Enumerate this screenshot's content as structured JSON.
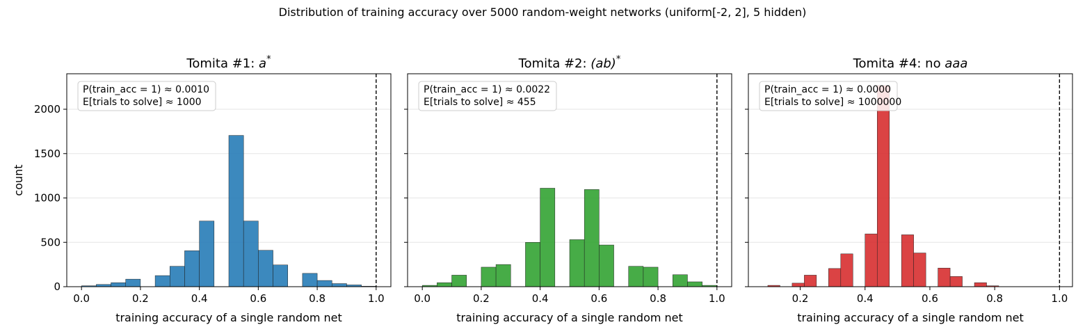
{
  "figure": {
    "suptitle": "Distribution of training accuracy over 5000 random-weight networks (uniform[-2, 2], 5 hidden)"
  },
  "chart_data": [
    {
      "type": "bar",
      "title_prefix": "Tomita #1: ",
      "title_math": "a",
      "title_sup": "*",
      "xlabel": "training accuracy of a single random net",
      "ylabel": "count",
      "xlim": [
        -0.05,
        1.05
      ],
      "ylim": [
        0,
        2400
      ],
      "xticks": [
        "0.0",
        "0.2",
        "0.4",
        "0.6",
        "0.8",
        "1.0"
      ],
      "xtick_values": [
        0.0,
        0.2,
        0.4,
        0.6,
        0.8,
        1.0
      ],
      "yticks": [
        "0",
        "500",
        "1000",
        "1500",
        "2000"
      ],
      "ytick_values": [
        0,
        500,
        1000,
        1500,
        2000
      ],
      "grid": "y",
      "color": "#1f77b4",
      "bin_edges": [
        0.0,
        0.05,
        0.1,
        0.15,
        0.2,
        0.25,
        0.3,
        0.35,
        0.4,
        0.45,
        0.5,
        0.55,
        0.6,
        0.65,
        0.7,
        0.75,
        0.8,
        0.85,
        0.9,
        0.95,
        1.0
      ],
      "values": [
        10,
        25,
        45,
        85,
        0,
        125,
        230,
        405,
        740,
        0,
        1705,
        740,
        410,
        245,
        0,
        150,
        70,
        35,
        20,
        5
      ],
      "annotation": [
        "P(train_acc = 1) ≈ 0.0010",
        "E[trials to solve] ≈ 1000"
      ],
      "vline": 1.0
    },
    {
      "type": "bar",
      "title_prefix": "Tomita #2: ",
      "title_math": "(ab)",
      "title_sup": "*",
      "xlabel": "training accuracy of a single random net",
      "ylabel": "",
      "xlim": [
        -0.05,
        1.05
      ],
      "ylim": [
        0,
        2400
      ],
      "xticks": [
        "0.0",
        "0.2",
        "0.4",
        "0.6",
        "0.8",
        "1.0"
      ],
      "xtick_values": [
        0.0,
        0.2,
        0.4,
        0.6,
        0.8,
        1.0
      ],
      "yticks": [],
      "ytick_values": [
        0,
        500,
        1000,
        1500,
        2000
      ],
      "grid": "y",
      "color": "#2ca02c",
      "bin_edges": [
        0.0,
        0.05,
        0.1,
        0.15,
        0.2,
        0.25,
        0.3,
        0.35,
        0.4,
        0.45,
        0.5,
        0.55,
        0.6,
        0.65,
        0.7,
        0.75,
        0.8,
        0.85,
        0.9,
        0.95,
        1.0
      ],
      "values": [
        15,
        45,
        130,
        0,
        220,
        250,
        0,
        500,
        1110,
        0,
        530,
        1095,
        470,
        0,
        230,
        220,
        0,
        135,
        55,
        15
      ],
      "annotation": [
        "P(train_acc = 1) ≈ 0.0022",
        "E[trials to solve] ≈ 455"
      ],
      "vline": 1.0
    },
    {
      "type": "bar",
      "title_prefix": "Tomita #4: no ",
      "title_math": "aaa",
      "title_sup": "",
      "xlabel": "training accuracy of a single random net",
      "ylabel": "",
      "xlim": [
        0.04,
        1.04
      ],
      "ylim": [
        0,
        2400
      ],
      "xticks": [
        "0.2",
        "0.4",
        "0.6",
        "0.8",
        "1.0"
      ],
      "xtick_values": [
        0.2,
        0.4,
        0.6,
        0.8,
        1.0
      ],
      "yticks": [],
      "ytick_values": [
        0,
        500,
        1000,
        1500,
        2000
      ],
      "grid": "y",
      "color": "#d62728",
      "bin_edges": [
        0.1,
        0.1375,
        0.175,
        0.2125,
        0.25,
        0.2875,
        0.325,
        0.3625,
        0.4,
        0.4375,
        0.475,
        0.5125,
        0.55,
        0.5875,
        0.625,
        0.6625,
        0.7,
        0.7375,
        0.775,
        0.8125,
        0.85,
        0.8875
      ],
      "values": [
        15,
        0,
        40,
        130,
        0,
        205,
        370,
        0,
        595,
        2270,
        0,
        585,
        380,
        0,
        210,
        115,
        0,
        45,
        10,
        0,
        0
      ],
      "annotation": [
        "P(train_acc = 1) ≈ 0.0000",
        "E[trials to solve] ≈ 1000000"
      ],
      "vline": 1.0
    }
  ]
}
